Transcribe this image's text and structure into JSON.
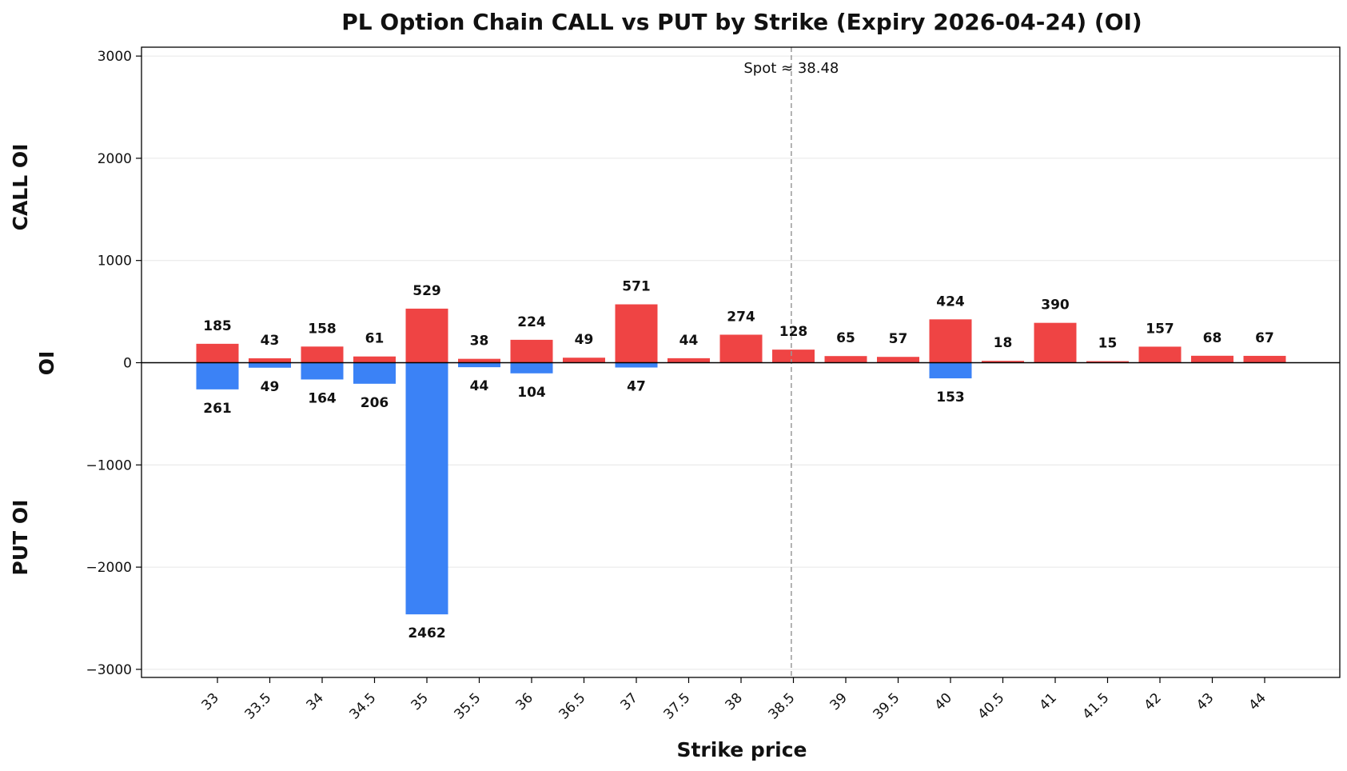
{
  "chart_data": {
    "type": "bar",
    "title": "PL Option Chain CALL vs PUT by Strike (Expiry 2026-04-24) (OI)",
    "xlabel": "Strike price",
    "ylabel": "OI",
    "ylabel_top": "CALL OI",
    "ylabel_bottom": "PUT OI",
    "ylim": [
      -3080,
      3080
    ],
    "yticks": [
      3000,
      2000,
      1000,
      0,
      -1000,
      -2000,
      -3000
    ],
    "ytick_labels": [
      "3000",
      "2000",
      "1000",
      "0",
      "−1000",
      "−2000",
      "−3000"
    ],
    "grid": true,
    "categories": [
      "33",
      "33.5",
      "34",
      "34.5",
      "35",
      "35.5",
      "36",
      "36.5",
      "37",
      "37.5",
      "38",
      "38.5",
      "39",
      "39.5",
      "40",
      "40.5",
      "41",
      "41.5",
      "42",
      "43",
      "44"
    ],
    "series": [
      {
        "role": "call",
        "color": "#ef4444",
        "values": [
          185,
          43,
          158,
          61,
          529,
          38,
          224,
          49,
          571,
          44,
          274,
          128,
          65,
          57,
          424,
          18,
          390,
          15,
          157,
          68,
          67
        ]
      },
      {
        "role": "put",
        "color": "#3b82f6",
        "values": [
          261,
          49,
          164,
          206,
          2462,
          44,
          104,
          0,
          47,
          0,
          0,
          0,
          0,
          0,
          153,
          0,
          0,
          0,
          0,
          0,
          0
        ]
      }
    ],
    "spot": {
      "value": 38.48,
      "label": "Spot ≈ 38.48",
      "color": "#999999"
    }
  }
}
